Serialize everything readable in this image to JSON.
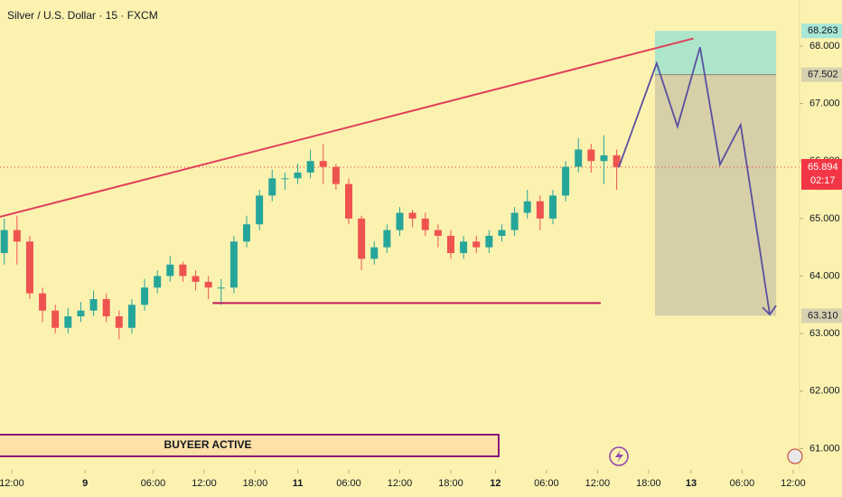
{
  "chart_data": {
    "type": "candlestick",
    "title": "Silver / U.S. Dollar · 15 · FXCM",
    "x": [
      2,
      8,
      14,
      20,
      26,
      32,
      38,
      44,
      50,
      56,
      62,
      68,
      74,
      80,
      86,
      92,
      98,
      104,
      110,
      116,
      122,
      128,
      134,
      140,
      146,
      152,
      158,
      164,
      170,
      176,
      182,
      188,
      194,
      200,
      206,
      212,
      218,
      224,
      230,
      236,
      242,
      248,
      254,
      260,
      266,
      272,
      278,
      284,
      290
    ],
    "open": [
      64.4,
      64.8,
      64.6,
      63.7,
      63.4,
      63.1,
      63.3,
      63.4,
      63.6,
      63.3,
      63.1,
      63.5,
      63.8,
      64.0,
      64.2,
      64.0,
      63.9,
      63.8,
      63.8,
      64.6,
      64.9,
      65.4,
      65.7,
      65.7,
      65.8,
      66.0,
      65.9,
      65.6,
      65.0,
      64.3,
      64.5,
      64.8,
      65.1,
      65.0,
      64.8,
      64.7,
      64.4,
      64.6,
      64.5,
      64.7,
      64.8,
      65.1,
      65.3,
      65.0,
      65.4,
      65.9,
      66.2,
      66.0,
      66.1
    ],
    "high": [
      65.0,
      65.05,
      64.7,
      63.8,
      63.5,
      63.45,
      63.55,
      63.75,
      63.7,
      63.4,
      63.6,
      63.95,
      64.1,
      64.35,
      64.25,
      64.1,
      64.0,
      63.95,
      64.7,
      65.05,
      65.5,
      65.85,
      65.8,
      65.95,
      66.2,
      66.3,
      65.95,
      65.7,
      65.05,
      64.6,
      64.9,
      65.2,
      65.15,
      65.1,
      64.9,
      64.8,
      64.7,
      64.7,
      64.8,
      64.9,
      65.2,
      65.5,
      65.4,
      65.5,
      66.0,
      66.4,
      66.3,
      66.45,
      66.2
    ],
    "low": [
      64.2,
      64.2,
      63.6,
      63.2,
      63.0,
      63.0,
      63.2,
      63.3,
      63.2,
      62.9,
      63.0,
      63.4,
      63.7,
      63.9,
      63.9,
      63.75,
      63.6,
      63.5,
      63.7,
      64.5,
      64.8,
      65.3,
      65.5,
      65.6,
      65.7,
      65.6,
      65.5,
      64.9,
      64.1,
      64.2,
      64.4,
      64.7,
      64.85,
      64.7,
      64.5,
      64.3,
      64.3,
      64.4,
      64.4,
      64.6,
      64.7,
      65.0,
      64.8,
      64.9,
      65.3,
      65.8,
      65.8,
      65.6,
      65.5
    ],
    "close": [
      64.8,
      64.6,
      63.7,
      63.4,
      63.1,
      63.3,
      63.4,
      63.6,
      63.3,
      63.1,
      63.5,
      63.8,
      64.0,
      64.2,
      64.0,
      63.9,
      63.8,
      63.8,
      64.6,
      64.9,
      65.4,
      65.7,
      65.7,
      65.8,
      66.0,
      65.9,
      65.6,
      65.0,
      64.3,
      64.5,
      64.8,
      65.1,
      65.0,
      64.8,
      64.7,
      64.4,
      64.6,
      64.5,
      64.7,
      64.8,
      65.1,
      65.3,
      65.0,
      65.4,
      65.9,
      66.2,
      66.0,
      66.1,
      65.894
    ],
    "up_color": "#26a69a",
    "down_color": "#ef5350",
    "xlim": [
      0,
      376
    ],
    "xticks": [
      {
        "value": 5.5,
        "label": "12:00"
      },
      {
        "value": 40,
        "label": "9"
      },
      {
        "value": 72,
        "label": "06:00"
      },
      {
        "value": 96,
        "label": "12:00"
      },
      {
        "value": 120,
        "label": "18:00"
      },
      {
        "value": 140,
        "label": "11"
      },
      {
        "value": 164,
        "label": "06:00"
      },
      {
        "value": 188,
        "label": "12:00"
      },
      {
        "value": 212,
        "label": "18:00"
      },
      {
        "value": 233,
        "label": "12"
      },
      {
        "value": 257,
        "label": "06:00"
      },
      {
        "value": 281,
        "label": "12:00"
      },
      {
        "value": 305,
        "label": "18:00"
      },
      {
        "value": 325,
        "label": "13"
      },
      {
        "value": 349,
        "label": "06:00"
      },
      {
        "value": 373,
        "label": "12:00"
      }
    ],
    "ylim": [
      60.63,
      68.8
    ],
    "yticks": [
      {
        "value": 61,
        "label": "61.000"
      },
      {
        "value": 62,
        "label": "62.000"
      },
      {
        "value": 63,
        "label": "63.000"
      },
      {
        "value": 64,
        "label": "64.000"
      },
      {
        "value": 65,
        "label": "65.000"
      },
      {
        "value": 66,
        "label": "66.000"
      },
      {
        "value": 67,
        "label": "67.000"
      },
      {
        "value": 68,
        "label": "68.000"
      }
    ],
    "current_price": 65.894,
    "countdown": "02:17",
    "current_color": "#f23645",
    "trendline": {
      "x": [
        0,
        326
      ],
      "y": [
        65.03,
        68.13
      ],
      "color": "#e0405a"
    },
    "support": {
      "x": [
        100,
        282.5
      ],
      "y": [
        63.53,
        63.53
      ],
      "color": "#c0185a"
    },
    "zone": {
      "x": [
        308,
        365
      ],
      "target": 68.263,
      "entry": 67.502,
      "stop": {
        "value": 63.31,
        "label": "63.310"
      },
      "target_color": "#9fe3cf",
      "stop_color": "#cfc9a6"
    },
    "projection": {
      "x": [
        291,
        308.8,
        318.6,
        329.2,
        338.6,
        348.3,
        362
      ],
      "y": [
        65.89,
        67.7,
        66.6,
        67.98,
        65.94,
        66.63,
        63.33
      ],
      "color": "#5a4fa0"
    },
    "annotation": "BUYEER ACTIVE"
  }
}
